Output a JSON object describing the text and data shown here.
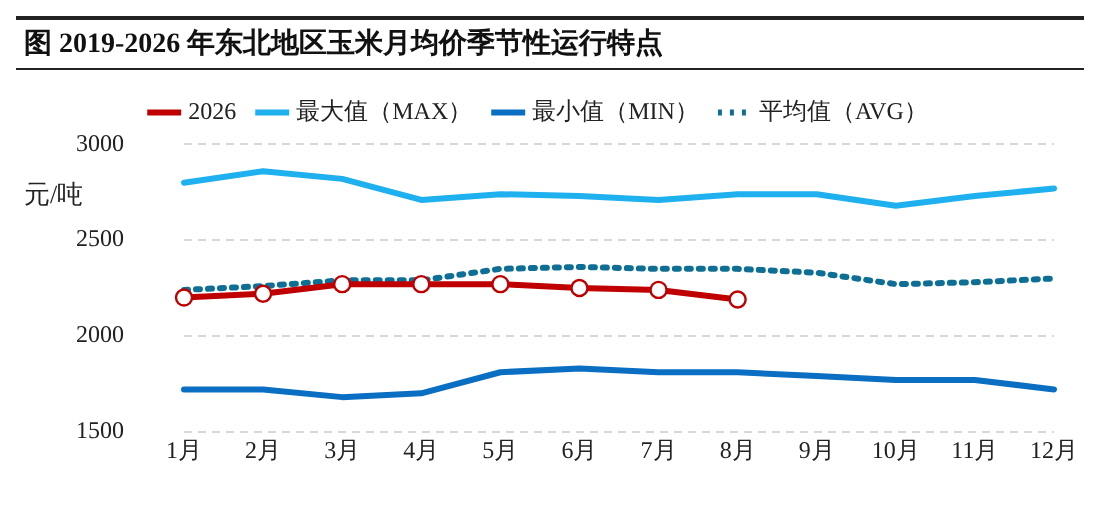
{
  "chart_data": {
    "type": "line",
    "title": "图  2019-2026 年东北地区玉米月均价季节性运行特点",
    "ylabel": "元/吨",
    "categories": [
      "1月",
      "2月",
      "3月",
      "4月",
      "5月",
      "6月",
      "7月",
      "8月",
      "9月",
      "10月",
      "11月",
      "12月"
    ],
    "series": [
      {
        "name": "2026",
        "color": "#c00000",
        "marker": "circle",
        "line_style": "solid",
        "values": [
          2200,
          2220,
          2270,
          2270,
          2270,
          2250,
          2240,
          2190,
          null,
          null,
          null,
          null
        ]
      },
      {
        "name": "最大值（MAX）",
        "color": "#1fb0f0",
        "marker": "none",
        "line_style": "solid",
        "values": [
          2800,
          2860,
          2820,
          2710,
          2740,
          2730,
          2710,
          2740,
          2740,
          2680,
          2730,
          2770
        ]
      },
      {
        "name": "最小值（MIN）",
        "color": "#0a6fc2",
        "marker": "none",
        "line_style": "solid",
        "values": [
          1720,
          1720,
          1680,
          1700,
          1810,
          1830,
          1810,
          1810,
          1790,
          1770,
          1770,
          1720
        ]
      },
      {
        "name": "平均值（AVG）",
        "color": "#0e6f96",
        "marker": "none",
        "line_style": "dotted",
        "values": [
          2240,
          2260,
          2290,
          2290,
          2350,
          2360,
          2350,
          2350,
          2330,
          2270,
          2280,
          2300
        ]
      }
    ],
    "ylim": [
      1500,
      3000
    ],
    "yticks": [
      1500,
      2000,
      2500,
      3000
    ],
    "grid": "y",
    "legend": "top"
  }
}
